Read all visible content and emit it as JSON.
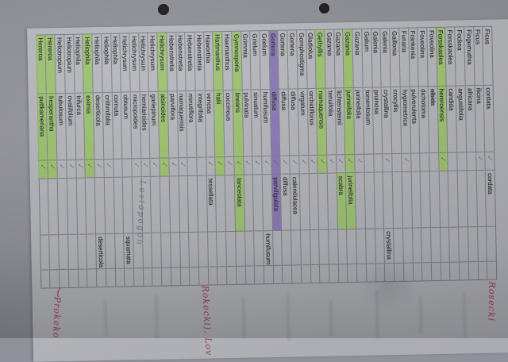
{
  "document": {
    "kind": "photographed printed species checklist, page rotated 90°",
    "check_glyph": "✓",
    "colors": {
      "highlight_green": "#96c65c",
      "highlight_purple": "#846eb4",
      "paper": "#b2b3b8",
      "backdrop": "#90919a",
      "red_ink": "#9e3950",
      "pencil": "#58585f"
    },
    "rows": [
      {
        "genus": "Ficus",
        "species": "cordata",
        "checked": true,
        "alt": "cordata",
        "alt2": "",
        "highlight": "",
        "alt_highlight": "",
        "strike": false
      },
      {
        "genus": "Ficus",
        "species": "ilicina",
        "checked": true,
        "alt": "",
        "alt2": "",
        "highlight": "",
        "alt_highlight": "",
        "strike": false
      },
      {
        "genus": "Fingerhuthia",
        "species": "africana",
        "checked": false,
        "alt": "",
        "alt2": "",
        "highlight": "",
        "alt_highlight": "",
        "strike": false
      },
      {
        "genus": "Fockea",
        "species": "angustifolia",
        "checked": false,
        "alt": "",
        "alt2": "",
        "highlight": "",
        "alt_highlight": "",
        "strike": false
      },
      {
        "genus": "Forsskaolea",
        "species": "candida",
        "checked": false,
        "alt": "",
        "alt2": "",
        "highlight": "",
        "alt_highlight": "",
        "strike": false
      },
      {
        "genus": "Forsskaolea",
        "species": "hereroensis",
        "checked": true,
        "alt": "",
        "alt2": "",
        "highlight": "green",
        "alt_highlight": "",
        "strike": false
      },
      {
        "genus": "Foveolina",
        "species": "albida",
        "checked": false,
        "alt": "",
        "alt2": "",
        "highlight": "",
        "alt_highlight": "",
        "strike": true
      },
      {
        "genus": "Foveolina",
        "species": "dichotoma",
        "checked": false,
        "alt": "",
        "alt2": "",
        "highlight": "",
        "alt_highlight": "",
        "strike": false
      },
      {
        "genus": "Frankenia",
        "species": "pulverulenta",
        "checked": false,
        "alt": "",
        "alt2": "",
        "highlight": "",
        "alt_highlight": "",
        "strike": false
      },
      {
        "genus": "Funaria",
        "species": "hygrometrica",
        "checked": true,
        "alt": "",
        "alt2": "",
        "highlight": "",
        "alt_highlight": "",
        "strike": false
      },
      {
        "genus": "Gaillonia",
        "species": "crocyllis",
        "checked": false,
        "alt": "",
        "alt2": "",
        "highlight": "",
        "alt_highlight": "",
        "strike": false
      },
      {
        "genus": "Galenia",
        "species": "crystallina",
        "checked": true,
        "alt": "",
        "alt2": "crystallina",
        "highlight": "",
        "alt_highlight": "",
        "strike": false
      },
      {
        "genus": "Galenia",
        "species": "pruinosa",
        "checked": false,
        "alt": "",
        "alt2": "",
        "highlight": "",
        "alt_highlight": "",
        "strike": false
      },
      {
        "genus": "Galium",
        "species": "tomentosum",
        "checked": false,
        "alt": "",
        "alt2": "",
        "highlight": "",
        "alt_highlight": "",
        "strike": false
      },
      {
        "genus": "Gazania",
        "species": "jurineifolia",
        "checked": true,
        "alt": "",
        "alt2": "",
        "highlight": "",
        "alt_highlight": "",
        "strike": false
      },
      {
        "genus": "Gazania",
        "species": "jurineifolia",
        "checked": true,
        "alt": "jurineifolia",
        "alt2": "",
        "highlight": "green",
        "alt_highlight": "green",
        "strike": false
      },
      {
        "genus": "Gazania",
        "species": "lichtensteinii",
        "checked": true,
        "alt": "scabra",
        "alt2": "",
        "highlight": "",
        "alt_highlight": "green",
        "strike": false
      },
      {
        "genus": "Gazania",
        "species": "tenuifolia",
        "checked": true,
        "alt": "",
        "alt2": "",
        "highlight": "",
        "alt_highlight": "",
        "strike": false
      },
      {
        "genus": "Gethyllis",
        "species": "namaquensis",
        "checked": true,
        "alt": "",
        "alt2": "",
        "highlight": "green",
        "alt_highlight": "",
        "strike": false
      },
      {
        "genus": "Gladiolus",
        "species": "orchidiflorus",
        "checked": true,
        "alt": "",
        "alt2": "",
        "highlight": "",
        "alt_highlight": "",
        "strike": false
      },
      {
        "genus": "Gomphostigma",
        "species": "virgatum",
        "checked": true,
        "alt": "",
        "alt2": "",
        "highlight": "",
        "alt_highlight": "",
        "strike": false
      },
      {
        "genus": "Gorteria",
        "species": "diffusa",
        "checked": true,
        "alt": "calendulacea",
        "alt2": "",
        "highlight": "",
        "alt_highlight": "",
        "strike": false
      },
      {
        "genus": "Gorteria",
        "species": "diffusa",
        "checked": true,
        "alt": "diffusa",
        "alt2": "",
        "highlight": "",
        "alt_highlight": "",
        "strike": false
      },
      {
        "genus": "Gorteria",
        "species": "diffusa",
        "checked": true,
        "alt": "parviligulata",
        "alt2": "",
        "highlight": "purple",
        "alt_highlight": "purple",
        "strike": false
      },
      {
        "genus": "Grielum",
        "species": "humifusum",
        "checked": true,
        "alt": "",
        "alt2": "humifusum",
        "highlight": "",
        "alt_highlight": "",
        "strike": false
      },
      {
        "genus": "Grielum",
        "species": "sinuatum",
        "checked": true,
        "alt": "",
        "alt2": "",
        "highlight": "",
        "alt_highlight": "",
        "strike": false
      },
      {
        "genus": "Grimmia",
        "species": "pulvinata",
        "checked": true,
        "alt": "",
        "alt2": "",
        "highlight": "",
        "alt_highlight": "",
        "strike": false
      },
      {
        "genus": "Gymnosporia",
        "species": "linearis",
        "checked": true,
        "alt": "lanceolata",
        "alt2": "",
        "highlight": "green",
        "alt_highlight": "green",
        "strike": false
      },
      {
        "genus": "Haemanthus",
        "species": "coccineus",
        "checked": true,
        "alt": "",
        "alt2": "",
        "highlight": "",
        "alt_highlight": "",
        "strike": false
      },
      {
        "genus": "Hartmanthus",
        "species": "halii",
        "checked": true,
        "alt": "",
        "alt2": "",
        "highlight": "green",
        "alt_highlight": "",
        "strike": false
      },
      {
        "genus": "Haworthia",
        "species": "venosa",
        "checked": true,
        "alt": "tessellata",
        "alt2": "",
        "highlight": "",
        "alt_highlight": "",
        "strike": false
      },
      {
        "genus": "Hebenstretia",
        "species": "integrifolia",
        "checked": false,
        "alt": "",
        "alt2": "",
        "highlight": "",
        "alt_highlight": "",
        "strike": false
      },
      {
        "genus": "Hebenstretia",
        "species": "minutiflora",
        "checked": false,
        "alt": "",
        "alt2": "",
        "highlight": "",
        "alt_highlight": "",
        "strike": false
      },
      {
        "genus": "Hebenstretia",
        "species": "namaquensis",
        "checked": true,
        "alt": "",
        "alt2": "",
        "highlight": "",
        "alt_highlight": "",
        "strike": false
      },
      {
        "genus": "Hebenstretia",
        "species": "parviflora",
        "checked": true,
        "alt": "",
        "alt2": "",
        "highlight": "",
        "alt_highlight": "",
        "strike": false
      },
      {
        "genus": "Helichrysum",
        "species": "alsinoides",
        "checked": true,
        "alt": "",
        "alt2": "",
        "highlight": "green",
        "alt_highlight": "",
        "strike": false
      },
      {
        "genus": "Helichrysum",
        "species": "gariepinum",
        "checked": true,
        "alt": "",
        "alt2": "",
        "highlight": "",
        "alt_highlight": "",
        "strike": false
      },
      {
        "genus": "Helichrysum",
        "species": "herniarioides",
        "checked": true,
        "alt": "",
        "alt2": "",
        "highlight": "",
        "alt_highlight": "",
        "strike": false
      },
      {
        "genus": "Helichrysum",
        "species": "micropoides",
        "checked": true,
        "alt": "",
        "alt2": "",
        "highlight": "",
        "alt_highlight": "",
        "strike": false
      },
      {
        "genus": "Helichrysum",
        "species": "obtusum",
        "checked": false,
        "alt": "",
        "alt2": "squamata",
        "highlight": "",
        "alt_highlight": "",
        "strike": false
      },
      {
        "genus": "Heliophila",
        "species": "cornuta",
        "checked": false,
        "alt": "",
        "alt2": "",
        "highlight": "",
        "alt_highlight": "",
        "strike": false
      },
      {
        "genus": "Heliophila",
        "species": "crithmifolia",
        "checked": true,
        "alt": "",
        "alt2": "",
        "highlight": "",
        "alt_highlight": "",
        "strike": false
      },
      {
        "genus": "Heliophila",
        "species": "deserticola",
        "checked": true,
        "alt": "",
        "alt2": "deserticola",
        "highlight": "",
        "alt_highlight": "",
        "strike": false
      },
      {
        "genus": "Heliophila",
        "species": "eximia",
        "checked": true,
        "alt": "",
        "alt2": "",
        "highlight": "green",
        "alt_highlight": "",
        "strike": false
      },
      {
        "genus": "Heliophila",
        "species": "trifurca",
        "checked": true,
        "alt": "",
        "alt2": "",
        "highlight": "",
        "alt_highlight": "",
        "strike": false
      },
      {
        "genus": "Heliotropium",
        "species": "ovalifolium",
        "checked": true,
        "alt": "",
        "alt2": "",
        "highlight": "",
        "alt_highlight": "",
        "strike": false
      },
      {
        "genus": "Heliotropium",
        "species": "tubulosum",
        "checked": true,
        "alt": "",
        "alt2": "",
        "highlight": "",
        "alt_highlight": "",
        "strike": false
      },
      {
        "genus": "Hereroa",
        "species": "hesperantha",
        "checked": true,
        "alt": "",
        "alt2": "",
        "highlight": "green",
        "alt_highlight": "",
        "strike": false
      },
      {
        "genus": "Hereroa",
        "species": "puttkameriana",
        "checked": true,
        "alt": "",
        "alt2": "",
        "highlight": "green",
        "alt_highlight": "",
        "strike": false
      }
    ],
    "annotations": {
      "pencil_note": "Lasiopogon",
      "red_left_brace": "}",
      "red_left": "Prokeko",
      "red_mid": "Rokecki), Lov",
      "red_right": "Rosecki"
    }
  }
}
